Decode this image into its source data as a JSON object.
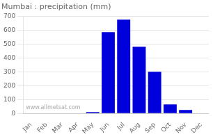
{
  "chart_data": {
    "type": "bar",
    "title": "Mumbai : precipitation (mm)",
    "categories": [
      "Jan",
      "Feb",
      "Mar",
      "Apr",
      "May",
      "Jun",
      "Jul",
      "Aug",
      "Sep",
      "Oct",
      "Nov",
      "Dec"
    ],
    "values": [
      0,
      0,
      0,
      0,
      10,
      585,
      675,
      480,
      300,
      65,
      25,
      0
    ],
    "color": "#0000dd",
    "ylim": [
      0,
      700
    ],
    "yticks": [
      0,
      100,
      200,
      300,
      400,
      500,
      600,
      700
    ],
    "grid": true,
    "annotations": [
      "www.allmetsat.com"
    ]
  }
}
